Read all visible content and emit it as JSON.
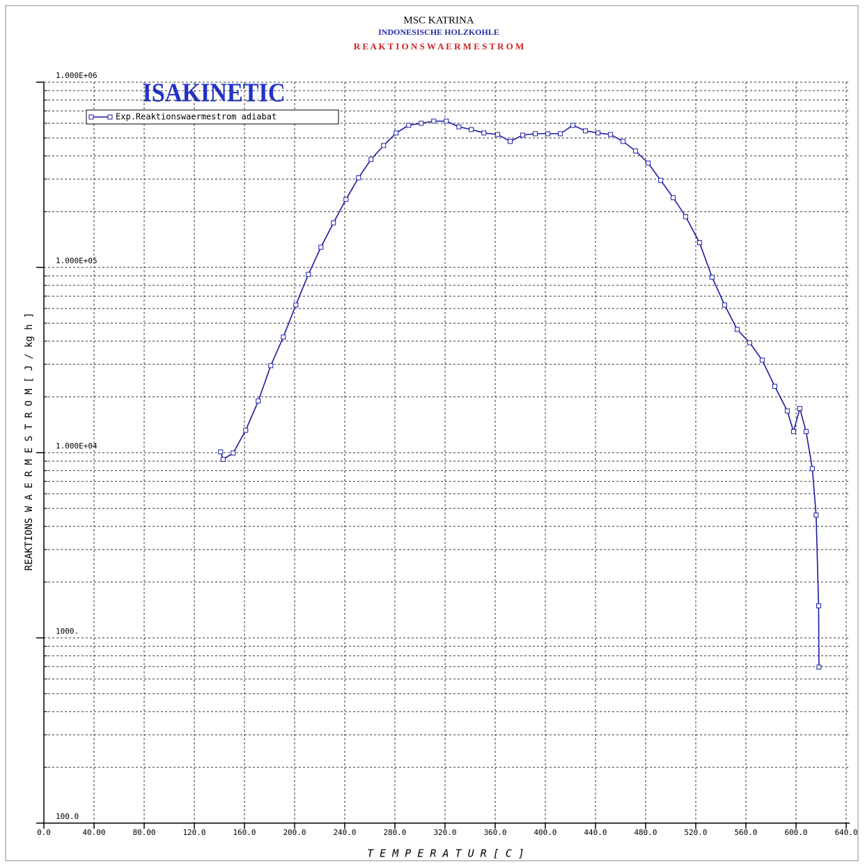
{
  "chart_data": {
    "type": "line",
    "title": "MSC KATRINA",
    "subtitle": "INDONESISCHE HOLZKOHLE",
    "subtitle2": "R E A K T I O N S W A E R M E S T R O M",
    "logo": "ISAKINETIC",
    "x_label": "T E M P E R A T U R    [ C ]",
    "y_label": "REAKTIONS W A E R M E S T R O M   [ J / kg h ]",
    "y_scale": "log",
    "grid": true,
    "legend": "upper left",
    "xlim": [
      0,
      640
    ],
    "ylim": [
      100,
      1000000
    ],
    "xticks": [
      {
        "value": 0,
        "label": "0.0"
      },
      {
        "value": 40,
        "label": "40.00"
      },
      {
        "value": 80,
        "label": "80.00"
      },
      {
        "value": 120,
        "label": "120.0"
      },
      {
        "value": 160,
        "label": "160.0"
      },
      {
        "value": 200,
        "label": "200.0"
      },
      {
        "value": 240,
        "label": "240.0"
      },
      {
        "value": 280,
        "label": "280.0"
      },
      {
        "value": 320,
        "label": "320.0"
      },
      {
        "value": 360,
        "label": "360.0"
      },
      {
        "value": 400,
        "label": "400.0"
      },
      {
        "value": 440,
        "label": "440.0"
      },
      {
        "value": 480,
        "label": "480.0"
      },
      {
        "value": 520,
        "label": "520.0"
      },
      {
        "value": 560,
        "label": "560.0"
      },
      {
        "value": 600,
        "label": "600.0"
      },
      {
        "value": 640,
        "label": "640.0"
      }
    ],
    "yticks": [
      {
        "value": 100,
        "label": "100.0"
      },
      {
        "value": 1000,
        "label": "1000."
      },
      {
        "value": 10000,
        "label": "1.000E+04"
      },
      {
        "value": 100000,
        "label": "1.000E+05"
      },
      {
        "value": 1000000,
        "label": "1.000E+06"
      }
    ],
    "y_minor_ticks": [
      200,
      300,
      400,
      500,
      600,
      700,
      800,
      900,
      2000,
      3000,
      4000,
      5000,
      6000,
      7000,
      8000,
      9000,
      20000,
      30000,
      40000,
      50000,
      60000,
      70000,
      80000,
      90000,
      200000,
      300000,
      400000,
      500000,
      600000,
      700000,
      800000,
      900000
    ],
    "x": [
      141,
      143,
      151,
      161,
      171,
      181,
      191,
      201,
      211,
      221,
      231,
      241,
      251,
      261,
      271,
      281,
      291,
      301,
      311,
      321,
      331,
      341,
      351,
      362,
      372,
      382,
      392,
      402,
      412,
      422,
      432,
      442,
      452,
      462,
      472,
      482,
      492,
      502,
      512,
      523,
      533,
      543,
      553,
      563,
      573,
      583,
      593,
      598,
      603,
      608,
      613,
      616,
      618,
      618.3
    ],
    "series": [
      {
        "name": "Exp.Reaktionswaermestrom adiabat",
        "color": "#1a1aa0",
        "values": [
          10100,
          9200,
          9950,
          13200,
          19000,
          29500,
          42100,
          62700,
          91700,
          128500,
          174000,
          233000,
          305000,
          383000,
          455000,
          532000,
          585000,
          600000,
          616000,
          616000,
          574000,
          555000,
          532000,
          522000,
          479000,
          518000,
          527000,
          527000,
          527000,
          585000,
          546000,
          532000,
          522000,
          479000,
          425000,
          366000,
          295000,
          238000,
          188000,
          136000,
          88500,
          62700,
          46300,
          39200,
          31600,
          22800,
          16800,
          13000,
          17300,
          13000,
          8200,
          4600,
          1490,
          695
        ]
      }
    ]
  }
}
